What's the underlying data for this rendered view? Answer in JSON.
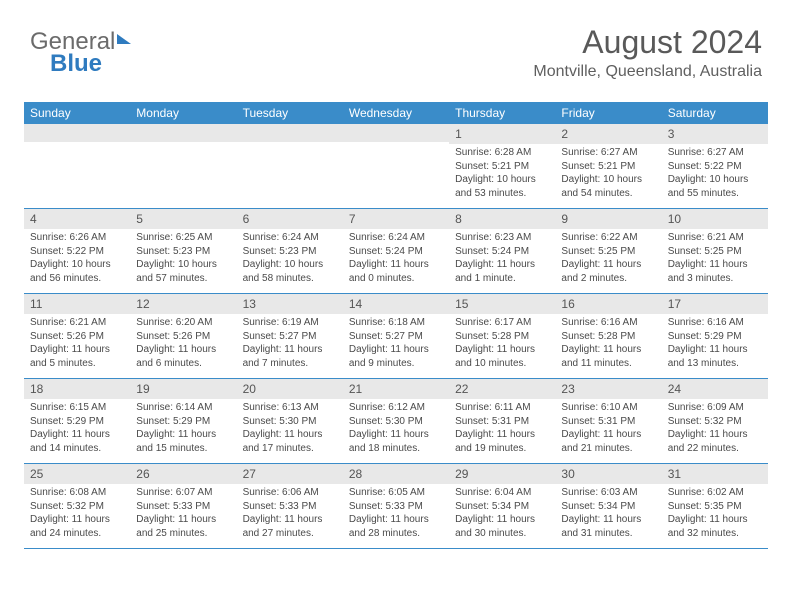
{
  "brand": {
    "part1": "General",
    "part2": "Blue"
  },
  "title": "August 2024",
  "location": "Montville, Queensland, Australia",
  "colors": {
    "header_bg": "#3a8cc9",
    "strip_bg": "#e8e8e8",
    "border": "#3a8cc9",
    "text": "#4a4a4a"
  },
  "days_of_week": [
    "Sunday",
    "Monday",
    "Tuesday",
    "Wednesday",
    "Thursday",
    "Friday",
    "Saturday"
  ],
  "weeks": [
    [
      {
        "n": "",
        "lines": []
      },
      {
        "n": "",
        "lines": []
      },
      {
        "n": "",
        "lines": []
      },
      {
        "n": "",
        "lines": []
      },
      {
        "n": "1",
        "lines": [
          "Sunrise: 6:28 AM",
          "Sunset: 5:21 PM",
          "Daylight: 10 hours and 53 minutes."
        ]
      },
      {
        "n": "2",
        "lines": [
          "Sunrise: 6:27 AM",
          "Sunset: 5:21 PM",
          "Daylight: 10 hours and 54 minutes."
        ]
      },
      {
        "n": "3",
        "lines": [
          "Sunrise: 6:27 AM",
          "Sunset: 5:22 PM",
          "Daylight: 10 hours and 55 minutes."
        ]
      }
    ],
    [
      {
        "n": "4",
        "lines": [
          "Sunrise: 6:26 AM",
          "Sunset: 5:22 PM",
          "Daylight: 10 hours and 56 minutes."
        ]
      },
      {
        "n": "5",
        "lines": [
          "Sunrise: 6:25 AM",
          "Sunset: 5:23 PM",
          "Daylight: 10 hours and 57 minutes."
        ]
      },
      {
        "n": "6",
        "lines": [
          "Sunrise: 6:24 AM",
          "Sunset: 5:23 PM",
          "Daylight: 10 hours and 58 minutes."
        ]
      },
      {
        "n": "7",
        "lines": [
          "Sunrise: 6:24 AM",
          "Sunset: 5:24 PM",
          "Daylight: 11 hours and 0 minutes."
        ]
      },
      {
        "n": "8",
        "lines": [
          "Sunrise: 6:23 AM",
          "Sunset: 5:24 PM",
          "Daylight: 11 hours and 1 minute."
        ]
      },
      {
        "n": "9",
        "lines": [
          "Sunrise: 6:22 AM",
          "Sunset: 5:25 PM",
          "Daylight: 11 hours and 2 minutes."
        ]
      },
      {
        "n": "10",
        "lines": [
          "Sunrise: 6:21 AM",
          "Sunset: 5:25 PM",
          "Daylight: 11 hours and 3 minutes."
        ]
      }
    ],
    [
      {
        "n": "11",
        "lines": [
          "Sunrise: 6:21 AM",
          "Sunset: 5:26 PM",
          "Daylight: 11 hours and 5 minutes."
        ]
      },
      {
        "n": "12",
        "lines": [
          "Sunrise: 6:20 AM",
          "Sunset: 5:26 PM",
          "Daylight: 11 hours and 6 minutes."
        ]
      },
      {
        "n": "13",
        "lines": [
          "Sunrise: 6:19 AM",
          "Sunset: 5:27 PM",
          "Daylight: 11 hours and 7 minutes."
        ]
      },
      {
        "n": "14",
        "lines": [
          "Sunrise: 6:18 AM",
          "Sunset: 5:27 PM",
          "Daylight: 11 hours and 9 minutes."
        ]
      },
      {
        "n": "15",
        "lines": [
          "Sunrise: 6:17 AM",
          "Sunset: 5:28 PM",
          "Daylight: 11 hours and 10 minutes."
        ]
      },
      {
        "n": "16",
        "lines": [
          "Sunrise: 6:16 AM",
          "Sunset: 5:28 PM",
          "Daylight: 11 hours and 11 minutes."
        ]
      },
      {
        "n": "17",
        "lines": [
          "Sunrise: 6:16 AM",
          "Sunset: 5:29 PM",
          "Daylight: 11 hours and 13 minutes."
        ]
      }
    ],
    [
      {
        "n": "18",
        "lines": [
          "Sunrise: 6:15 AM",
          "Sunset: 5:29 PM",
          "Daylight: 11 hours and 14 minutes."
        ]
      },
      {
        "n": "19",
        "lines": [
          "Sunrise: 6:14 AM",
          "Sunset: 5:29 PM",
          "Daylight: 11 hours and 15 minutes."
        ]
      },
      {
        "n": "20",
        "lines": [
          "Sunrise: 6:13 AM",
          "Sunset: 5:30 PM",
          "Daylight: 11 hours and 17 minutes."
        ]
      },
      {
        "n": "21",
        "lines": [
          "Sunrise: 6:12 AM",
          "Sunset: 5:30 PM",
          "Daylight: 11 hours and 18 minutes."
        ]
      },
      {
        "n": "22",
        "lines": [
          "Sunrise: 6:11 AM",
          "Sunset: 5:31 PM",
          "Daylight: 11 hours and 19 minutes."
        ]
      },
      {
        "n": "23",
        "lines": [
          "Sunrise: 6:10 AM",
          "Sunset: 5:31 PM",
          "Daylight: 11 hours and 21 minutes."
        ]
      },
      {
        "n": "24",
        "lines": [
          "Sunrise: 6:09 AM",
          "Sunset: 5:32 PM",
          "Daylight: 11 hours and 22 minutes."
        ]
      }
    ],
    [
      {
        "n": "25",
        "lines": [
          "Sunrise: 6:08 AM",
          "Sunset: 5:32 PM",
          "Daylight: 11 hours and 24 minutes."
        ]
      },
      {
        "n": "26",
        "lines": [
          "Sunrise: 6:07 AM",
          "Sunset: 5:33 PM",
          "Daylight: 11 hours and 25 minutes."
        ]
      },
      {
        "n": "27",
        "lines": [
          "Sunrise: 6:06 AM",
          "Sunset: 5:33 PM",
          "Daylight: 11 hours and 27 minutes."
        ]
      },
      {
        "n": "28",
        "lines": [
          "Sunrise: 6:05 AM",
          "Sunset: 5:33 PM",
          "Daylight: 11 hours and 28 minutes."
        ]
      },
      {
        "n": "29",
        "lines": [
          "Sunrise: 6:04 AM",
          "Sunset: 5:34 PM",
          "Daylight: 11 hours and 30 minutes."
        ]
      },
      {
        "n": "30",
        "lines": [
          "Sunrise: 6:03 AM",
          "Sunset: 5:34 PM",
          "Daylight: 11 hours and 31 minutes."
        ]
      },
      {
        "n": "31",
        "lines": [
          "Sunrise: 6:02 AM",
          "Sunset: 5:35 PM",
          "Daylight: 11 hours and 32 minutes."
        ]
      }
    ]
  ]
}
